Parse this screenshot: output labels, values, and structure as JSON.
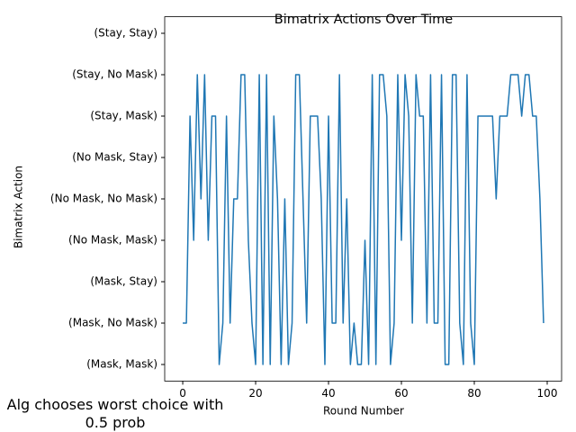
{
  "chart_data": {
    "type": "line",
    "title": "Bimatrix Actions Over Time",
    "x_label": "Round Number",
    "y_label": "Bimatrix Action",
    "annotation": "Alg chooses worst choice with 0.5 prob",
    "x": [
      0,
      1,
      2,
      3,
      4,
      5,
      6,
      7,
      8,
      9,
      10,
      11,
      12,
      13,
      14,
      15,
      16,
      17,
      18,
      19,
      20,
      21,
      22,
      23,
      24,
      25,
      26,
      27,
      28,
      29,
      30,
      31,
      32,
      33,
      34,
      35,
      36,
      37,
      38,
      39,
      40,
      41,
      42,
      43,
      44,
      45,
      46,
      47,
      48,
      49,
      50,
      51,
      52,
      53,
      54,
      55,
      56,
      57,
      58,
      59,
      60,
      61,
      62,
      63,
      64,
      65,
      66,
      67,
      68,
      69,
      70,
      71,
      72,
      73,
      74,
      75,
      76,
      77,
      78,
      79,
      80,
      81,
      82,
      83,
      84,
      85,
      86,
      87,
      88,
      89,
      90,
      91,
      92,
      93,
      94,
      95,
      96,
      97,
      98,
      99
    ],
    "series": [
      {
        "color": "#1f77b4",
        "values": [
          1,
          1,
          6,
          3,
          7,
          4,
          7,
          3,
          6,
          6,
          0,
          1,
          6,
          1,
          4,
          4,
          7,
          7,
          3,
          1,
          0,
          7,
          0,
          7,
          0,
          6,
          4,
          0,
          4,
          0,
          1,
          7,
          7,
          4,
          1,
          6,
          6,
          6,
          4,
          0,
          6,
          1,
          1,
          7,
          1,
          4,
          0,
          1,
          0,
          0,
          3,
          0,
          7,
          0,
          7,
          7,
          6,
          0,
          1,
          7,
          3,
          7,
          6,
          1,
          7,
          6,
          6,
          1,
          7,
          1,
          1,
          7,
          0,
          0,
          7,
          7,
          1,
          0,
          7,
          1,
          0,
          6,
          6,
          6,
          6,
          6,
          4,
          6,
          6,
          6,
          7,
          7,
          7,
          6,
          7,
          7,
          6,
          6,
          4,
          1
        ]
      }
    ],
    "xlim": [
      -4.95,
      103.95
    ],
    "xticks": [
      0,
      20,
      40,
      60,
      80,
      100
    ],
    "ylim": [
      -0.4,
      8.4
    ],
    "yticks": [
      {
        "value": 0,
        "label": "(Mask, Mask)"
      },
      {
        "value": 1,
        "label": "(Mask, No Mask)"
      },
      {
        "value": 2,
        "label": "(Mask, Stay)"
      },
      {
        "value": 3,
        "label": "(No Mask, Mask)"
      },
      {
        "value": 4,
        "label": "(No Mask, No Mask)"
      },
      {
        "value": 5,
        "label": "(No Mask, Stay)"
      },
      {
        "value": 6,
        "label": "(Stay, Mask)"
      },
      {
        "value": 7,
        "label": "(Stay, No Mask)"
      },
      {
        "value": 8,
        "label": "(Stay, Stay)"
      }
    ]
  }
}
